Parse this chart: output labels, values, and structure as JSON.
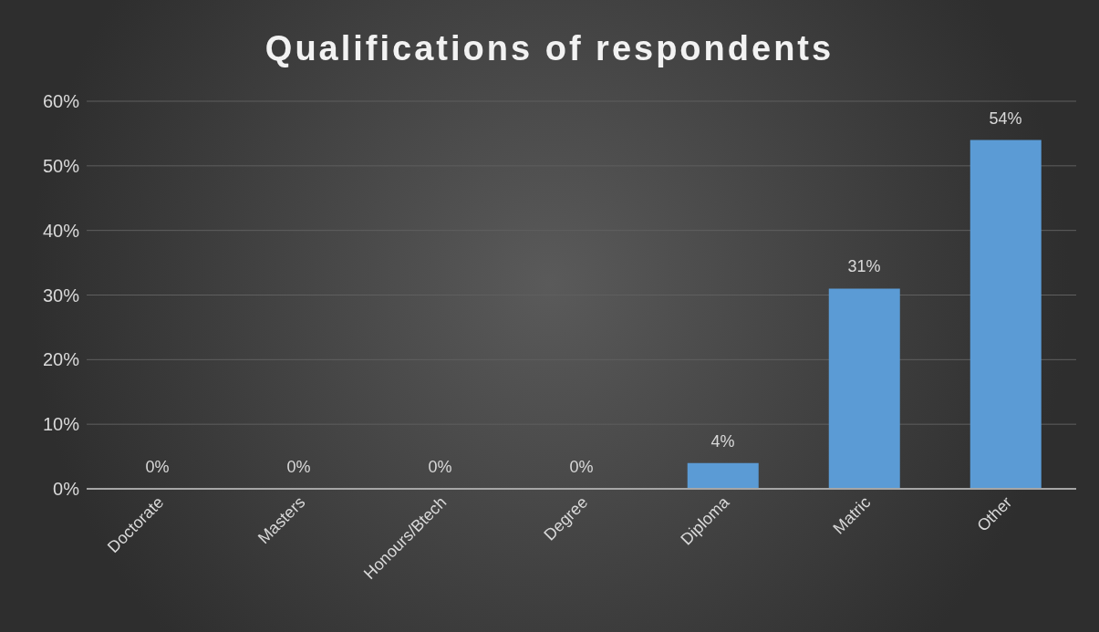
{
  "chart_data": {
    "type": "bar",
    "title": "Qualifications of respondents",
    "categories": [
      "Doctorate",
      "Masters",
      "Honours/Btech",
      "Degree",
      "Diploma",
      "Matric",
      "Other"
    ],
    "values": [
      0,
      0,
      0,
      0,
      4,
      31,
      54
    ],
    "value_labels": [
      "0%",
      "0%",
      "0%",
      "0%",
      "4%",
      "31%",
      "54%"
    ],
    "color": "#5b9bd5",
    "ylim": [
      0,
      60
    ],
    "yticks": [
      {
        "value": 0,
        "label": "0%"
      },
      {
        "value": 10,
        "label": "10%"
      },
      {
        "value": 20,
        "label": "20%"
      },
      {
        "value": 30,
        "label": "30%"
      },
      {
        "value": 40,
        "label": "40%"
      },
      {
        "value": 50,
        "label": "50%"
      },
      {
        "value": 60,
        "label": "60%"
      }
    ],
    "grid": "y"
  }
}
